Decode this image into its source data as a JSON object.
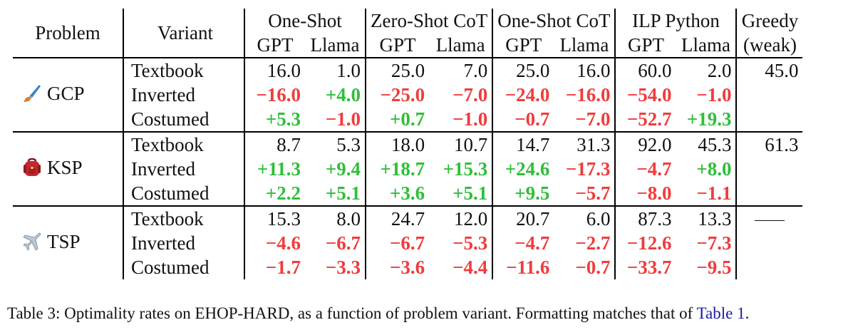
{
  "header": {
    "problem": "Problem",
    "variant": "Variant",
    "groups": [
      "One-Shot",
      "Zero-Shot CoT",
      "One-Shot CoT",
      "ILP Python"
    ],
    "greedy": "Greedy",
    "greedy_sub": "(weak)",
    "model_gpt": "GPT",
    "model_llama": "Llama"
  },
  "blocks": [
    {
      "problem": "GCP",
      "icon": "paintbrush-icon",
      "rows": [
        {
          "variant": "Textbook",
          "cells": [
            "16.0",
            "1.0",
            "25.0",
            "7.0",
            "25.0",
            "16.0",
            "60.0",
            "2.0"
          ],
          "greedy": "45.0"
        },
        {
          "variant": "Inverted",
          "cells": [
            "−16.0",
            "+4.0",
            "−25.0",
            "−7.0",
            "−24.0",
            "−16.0",
            "−54.0",
            "−1.0"
          ],
          "greedy": ""
        },
        {
          "variant": "Costumed",
          "cells": [
            "+5.3",
            "−1.0",
            "+0.7",
            "−1.0",
            "−0.7",
            "−7.0",
            "−52.7",
            "+19.3"
          ],
          "greedy": ""
        }
      ]
    },
    {
      "problem": "KSP",
      "icon": "backpack-icon",
      "rows": [
        {
          "variant": "Textbook",
          "cells": [
            "8.7",
            "5.3",
            "18.0",
            "10.7",
            "14.7",
            "31.3",
            "92.0",
            "45.3"
          ],
          "greedy": "61.3"
        },
        {
          "variant": "Inverted",
          "cells": [
            "+11.3",
            "+9.4",
            "+18.7",
            "+15.3",
            "+24.6",
            "−17.3",
            "−4.7",
            "+8.0"
          ],
          "greedy": ""
        },
        {
          "variant": "Costumed",
          "cells": [
            "+2.2",
            "+5.1",
            "+3.6",
            "+5.1",
            "+9.5",
            "−5.7",
            "−8.0",
            "−1.1"
          ],
          "greedy": ""
        }
      ]
    },
    {
      "problem": "TSP",
      "icon": "airplane-icon",
      "rows": [
        {
          "variant": "Textbook",
          "cells": [
            "15.3",
            "8.0",
            "24.7",
            "12.0",
            "20.7",
            "6.0",
            "87.3",
            "13.3"
          ],
          "greedy": "—"
        },
        {
          "variant": "Inverted",
          "cells": [
            "−4.6",
            "−6.7",
            "−6.7",
            "−5.3",
            "−4.7",
            "−2.7",
            "−12.6",
            "−7.3"
          ],
          "greedy": ""
        },
        {
          "variant": "Costumed",
          "cells": [
            "−1.7",
            "−3.3",
            "−3.6",
            "−4.4",
            "−11.6",
            "−0.7",
            "−33.7",
            "−9.5"
          ],
          "greedy": ""
        }
      ]
    }
  ],
  "colors": {
    "positive": "#2fbf39",
    "negative": "#f03c3c"
  },
  "caption": {
    "text": "Table 3: Optimality rates on EHOP-HARD, as a function of problem variant. Formatting matches that of ",
    "link": "Table 1",
    "end": "."
  }
}
